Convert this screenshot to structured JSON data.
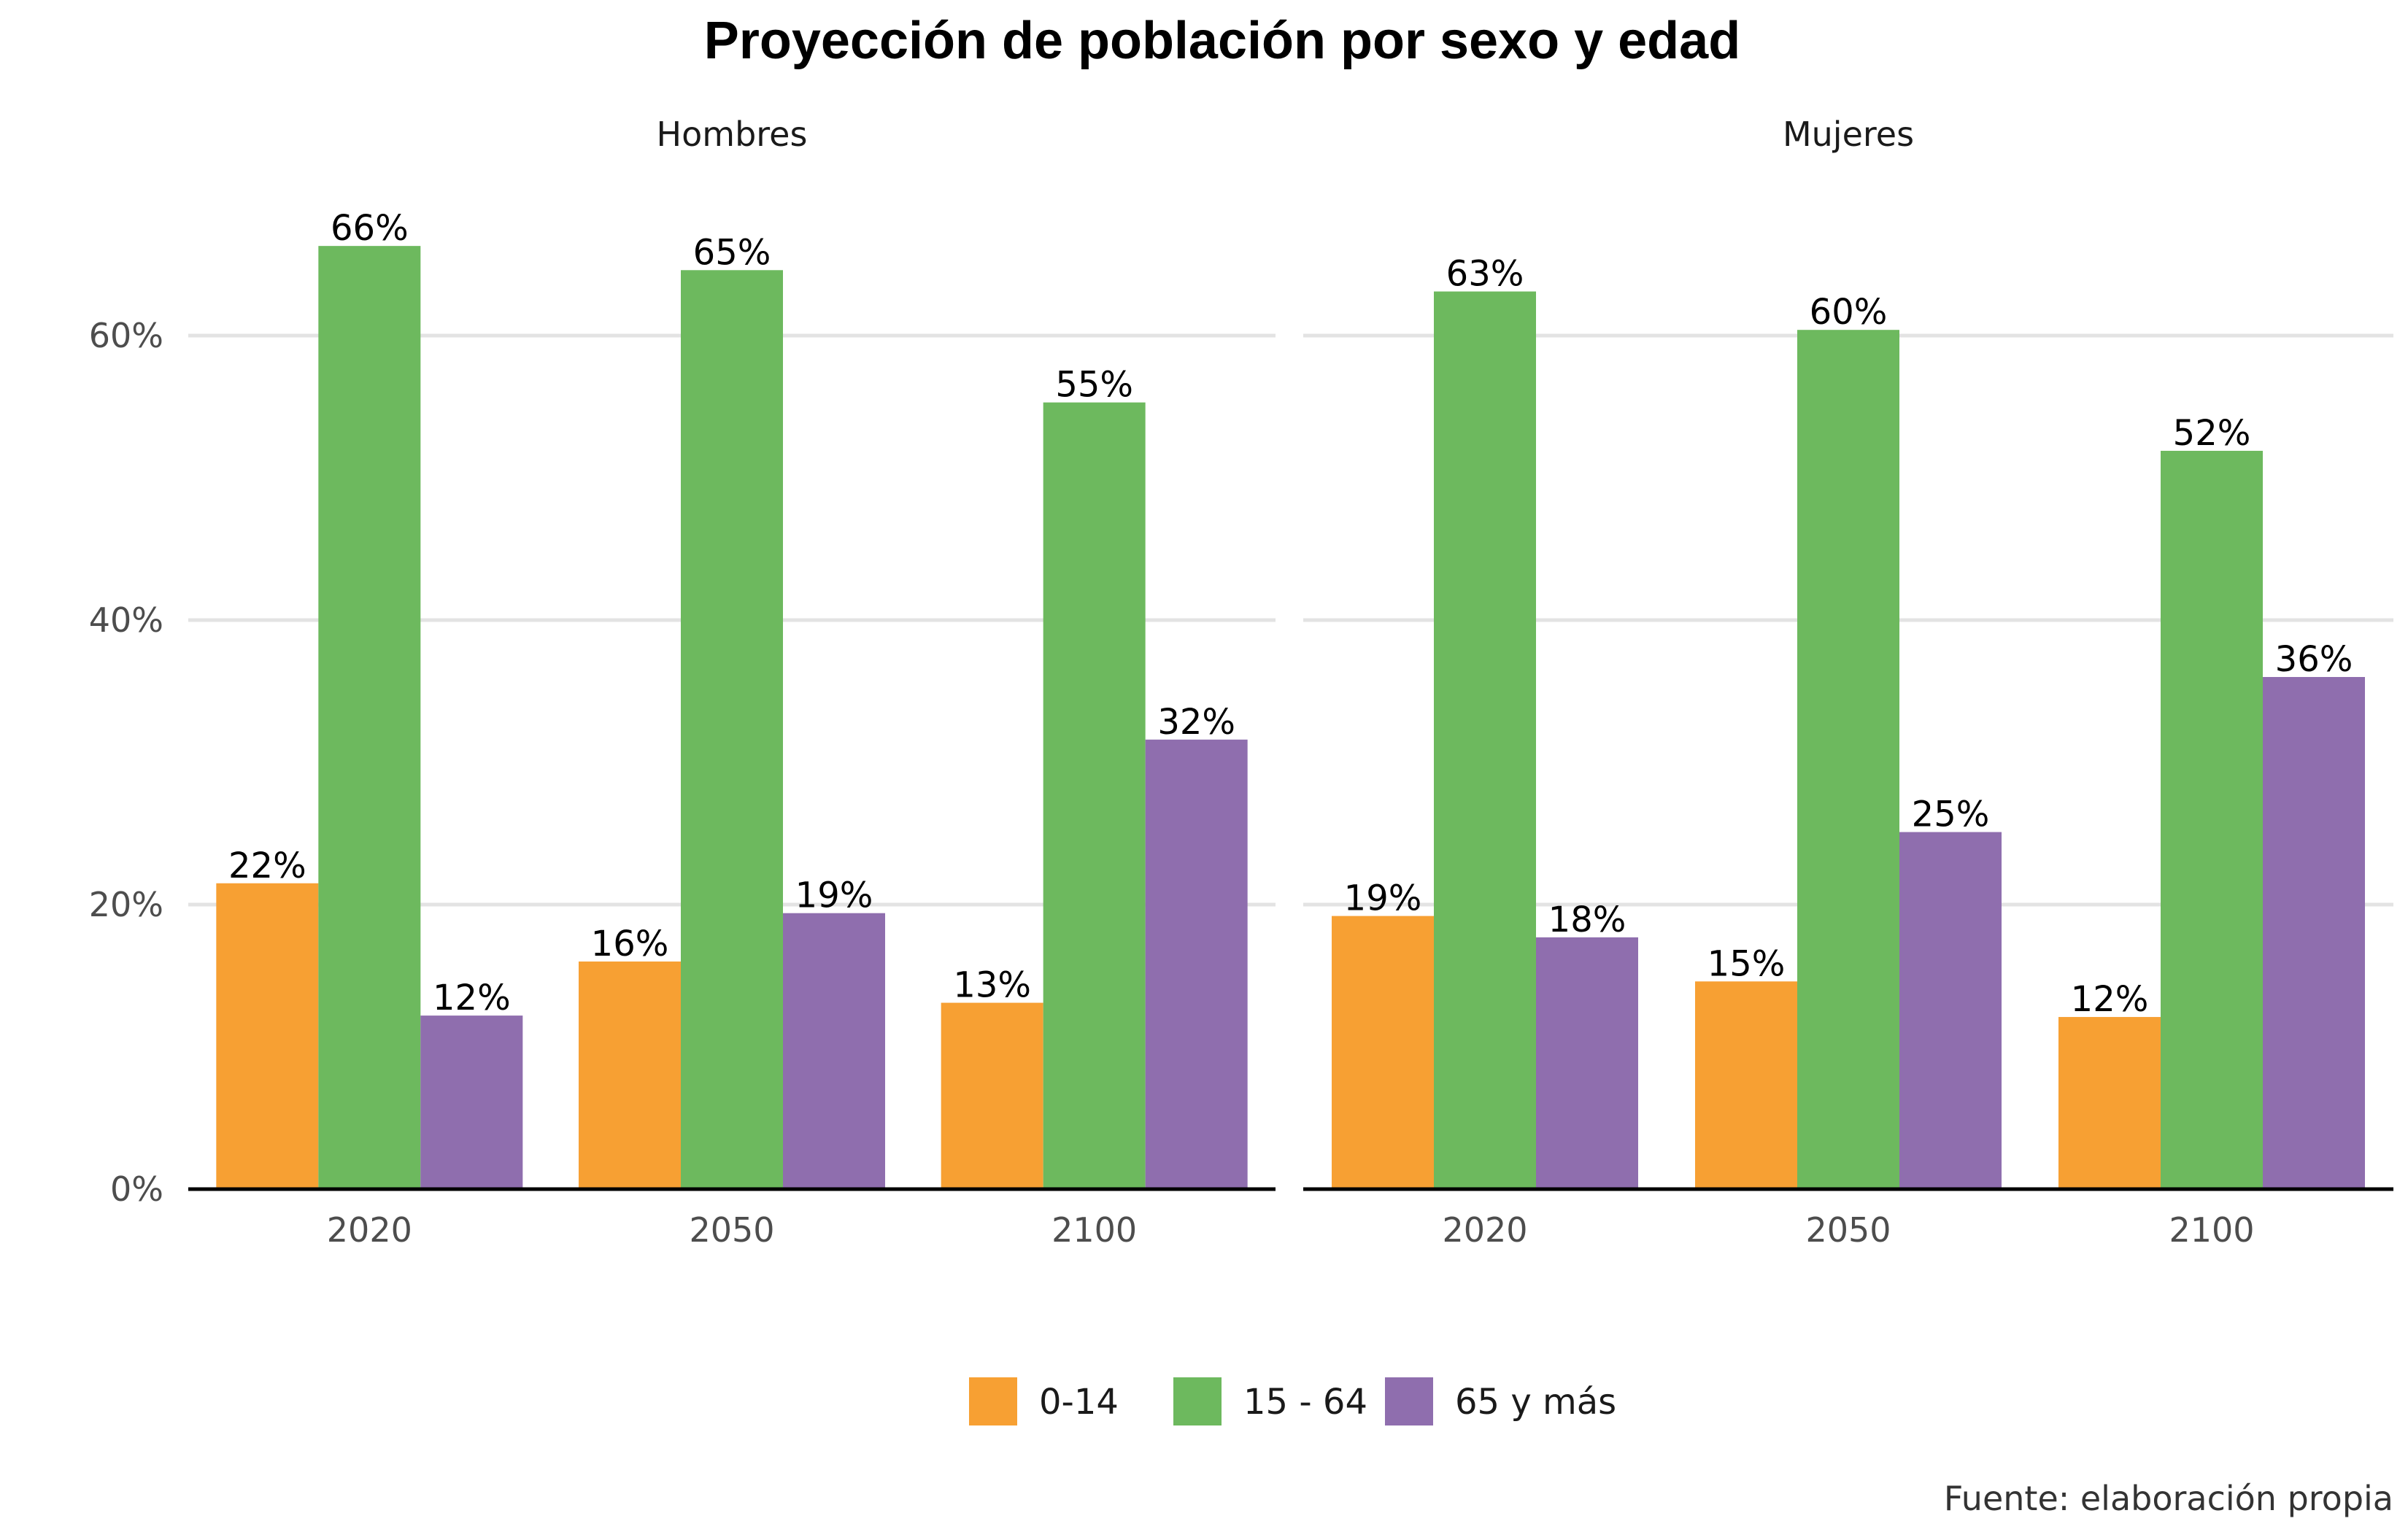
{
  "chart_data": {
    "type": "bar",
    "title": "Proyección de población por sexo y edad",
    "caption": "Fuente: elaboración propia",
    "categories": [
      "2020",
      "2050",
      "2100"
    ],
    "y_ticks": [
      "0%",
      "20%",
      "40%",
      "60%"
    ],
    "ylim": [
      0,
      70
    ],
    "grid": true,
    "legend_position": "bottom",
    "series_names": [
      "0-14",
      "15 - 64",
      "65 y más"
    ],
    "colors": [
      "#F7A033",
      "#6DB95E",
      "#8F6EAE"
    ],
    "panels": [
      {
        "label": "Hombres",
        "series": [
          {
            "name": "0-14",
            "values": [
              21.5,
              16.0,
              13.1
            ],
            "labels": [
              "22%",
              "16%",
              "13%"
            ]
          },
          {
            "name": "15 - 64",
            "values": [
              66.3,
              64.6,
              55.3
            ],
            "labels": [
              "66%",
              "65%",
              "55%"
            ]
          },
          {
            "name": "65 y más",
            "values": [
              12.2,
              19.4,
              31.6
            ],
            "labels": [
              "12%",
              "19%",
              "32%"
            ]
          }
        ]
      },
      {
        "label": "Mujeres",
        "series": [
          {
            "name": "0-14",
            "values": [
              19.2,
              14.6,
              12.1
            ],
            "labels": [
              "19%",
              "15%",
              "12%"
            ]
          },
          {
            "name": "15 - 64",
            "values": [
              63.1,
              60.4,
              51.9
            ],
            "labels": [
              "63%",
              "60%",
              "52%"
            ]
          },
          {
            "name": "65 y más",
            "values": [
              17.7,
              25.1,
              36.0
            ],
            "labels": [
              "18%",
              "25%",
              "36%"
            ]
          }
        ]
      }
    ]
  }
}
